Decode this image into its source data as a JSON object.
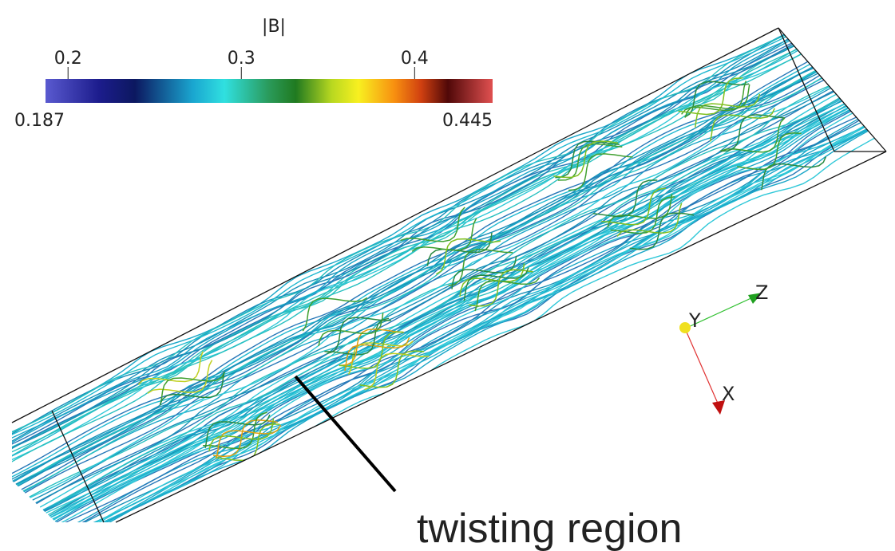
{
  "colorbar": {
    "title": "|B|",
    "range": [
      0.187,
      0.445
    ],
    "ticks": [
      0.2,
      0.3,
      0.4
    ]
  },
  "axes": {
    "x": "X",
    "y": "Y",
    "z": "Z"
  },
  "annotation": "twisting region"
}
